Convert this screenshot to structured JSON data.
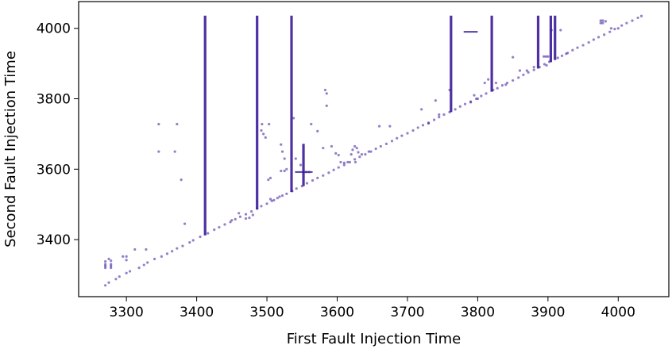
{
  "chart_data": {
    "type": "scatter",
    "xlabel": "First Fault Injection Time",
    "ylabel": "Second Fault Injection Time",
    "xlim": [
      3232,
      4072
    ],
    "ylim": [
      3238,
      4076
    ],
    "xticks": [
      3300,
      3400,
      3500,
      3600,
      3700,
      3800,
      3900,
      4000
    ],
    "yticks": [
      3400,
      3600,
      3800,
      4000
    ],
    "grid": false,
    "legend": "none",
    "color": "#3a1a99",
    "points": [
      [
        3270,
        3270
      ],
      [
        3275,
        3278
      ],
      [
        3285,
        3288
      ],
      [
        3290,
        3295
      ],
      [
        3300,
        3305
      ],
      [
        3305,
        3310
      ],
      [
        3318,
        3320
      ],
      [
        3325,
        3328
      ],
      [
        3330,
        3335
      ],
      [
        3340,
        3345
      ],
      [
        3350,
        3352
      ],
      [
        3358,
        3360
      ],
      [
        3365,
        3367
      ],
      [
        3372,
        3375
      ],
      [
        3380,
        3382
      ],
      [
        3390,
        3392
      ],
      [
        3395,
        3398
      ],
      [
        3405,
        3408
      ],
      [
        3416,
        3418
      ],
      [
        3425,
        3428
      ],
      [
        3432,
        3435
      ],
      [
        3440,
        3443
      ],
      [
        3448,
        3450
      ],
      [
        3455,
        3458
      ],
      [
        3462,
        3465
      ],
      [
        3470,
        3472
      ],
      [
        3478,
        3480
      ],
      [
        3486,
        3488
      ],
      [
        3492,
        3495
      ],
      [
        3500,
        3502
      ],
      [
        3507,
        3510
      ],
      [
        3515,
        3518
      ],
      [
        3522,
        3525
      ],
      [
        3528,
        3530
      ],
      [
        3536,
        3538
      ],
      [
        3542,
        3545
      ],
      [
        3550,
        3552
      ],
      [
        3557,
        3560
      ],
      [
        3565,
        3568
      ],
      [
        3572,
        3575
      ],
      [
        3580,
        3582
      ],
      [
        3588,
        3590
      ],
      [
        3595,
        3598
      ],
      [
        3602,
        3605
      ],
      [
        3610,
        3612
      ],
      [
        3618,
        3620
      ],
      [
        3625,
        3628
      ],
      [
        3632,
        3635
      ],
      [
        3640,
        3642
      ],
      [
        3648,
        3650
      ],
      [
        3655,
        3658
      ],
      [
        3662,
        3665
      ],
      [
        3670,
        3672
      ],
      [
        3678,
        3680
      ],
      [
        3685,
        3688
      ],
      [
        3692,
        3695
      ],
      [
        3700,
        3702
      ],
      [
        3708,
        3710
      ],
      [
        3715,
        3718
      ],
      [
        3722,
        3725
      ],
      [
        3730,
        3732
      ],
      [
        3738,
        3740
      ],
      [
        3745,
        3748
      ],
      [
        3752,
        3755
      ],
      [
        3760,
        3762
      ],
      [
        3768,
        3770
      ],
      [
        3775,
        3778
      ],
      [
        3782,
        3785
      ],
      [
        3790,
        3792
      ],
      [
        3798,
        3800
      ],
      [
        3805,
        3808
      ],
      [
        3812,
        3815
      ],
      [
        3822,
        3825
      ],
      [
        3828,
        3830
      ],
      [
        3835,
        3838
      ],
      [
        3842,
        3845
      ],
      [
        3850,
        3852
      ],
      [
        3858,
        3860
      ],
      [
        3865,
        3868
      ],
      [
        3872,
        3875
      ],
      [
        3880,
        3882
      ],
      [
        3888,
        3890
      ],
      [
        3895,
        3898
      ],
      [
        3902,
        3905
      ],
      [
        3914,
        3916
      ],
      [
        3920,
        3922
      ],
      [
        3928,
        3930
      ],
      [
        3935,
        3938
      ],
      [
        3942,
        3945
      ],
      [
        3950,
        3952
      ],
      [
        3958,
        3960
      ],
      [
        3965,
        3968
      ],
      [
        3972,
        3975
      ],
      [
        3980,
        3982
      ],
      [
        3988,
        3990
      ],
      [
        3995,
        3998
      ],
      [
        4005,
        4008
      ],
      [
        4012,
        4015
      ],
      [
        4020,
        4022
      ],
      [
        4028,
        4030
      ],
      [
        4033,
        4035
      ],
      [
        3270,
        3320
      ],
      [
        3270,
        3325
      ],
      [
        3270,
        3330
      ],
      [
        3270,
        3338
      ],
      [
        3278,
        3320
      ],
      [
        3278,
        3325
      ],
      [
        3278,
        3330
      ],
      [
        3278,
        3340
      ],
      [
        3275,
        3345
      ],
      [
        3295,
        3352
      ],
      [
        3300,
        3352
      ],
      [
        3300,
        3342
      ],
      [
        3312,
        3372
      ],
      [
        3328,
        3372
      ],
      [
        3346,
        3728
      ],
      [
        3372,
        3728
      ],
      [
        3346,
        3650
      ],
      [
        3369,
        3650
      ],
      [
        3378,
        3570
      ],
      [
        3383,
        3445
      ],
      [
        3450,
        3455
      ],
      [
        3460,
        3475
      ],
      [
        3470,
        3460
      ],
      [
        3475,
        3462
      ],
      [
        3480,
        3470
      ],
      [
        3493,
        3728
      ],
      [
        3503,
        3728
      ],
      [
        3492,
        3710
      ],
      [
        3495,
        3700
      ],
      [
        3498,
        3690
      ],
      [
        3502,
        3570
      ],
      [
        3505,
        3575
      ],
      [
        3505,
        3515
      ],
      [
        3510,
        3512
      ],
      [
        3518,
        3522
      ],
      [
        3520,
        3670
      ],
      [
        3522,
        3650
      ],
      [
        3525,
        3630
      ],
      [
        3528,
        3600
      ],
      [
        3520,
        3595
      ],
      [
        3525,
        3595
      ],
      [
        3538,
        3745
      ],
      [
        3541,
        3630
      ],
      [
        3548,
        3612
      ],
      [
        3552,
        3592
      ],
      [
        3556,
        3592
      ],
      [
        3560,
        3592
      ],
      [
        3563,
        3728
      ],
      [
        3572,
        3708
      ],
      [
        3580,
        3660
      ],
      [
        3583,
        3825
      ],
      [
        3585,
        3815
      ],
      [
        3585,
        3780
      ],
      [
        3592,
        3665
      ],
      [
        3598,
        3645
      ],
      [
        3602,
        3640
      ],
      [
        3605,
        3620
      ],
      [
        3610,
        3618
      ],
      [
        3615,
        3620
      ],
      [
        3622,
        3655
      ],
      [
        3625,
        3665
      ],
      [
        3628,
        3660
      ],
      [
        3630,
        3648
      ],
      [
        3620,
        3642
      ],
      [
        3626,
        3620
      ],
      [
        3635,
        3642
      ],
      [
        3645,
        3650
      ],
      [
        3660,
        3722
      ],
      [
        3675,
        3722
      ],
      [
        3720,
        3770
      ],
      [
        3730,
        3730
      ],
      [
        3740,
        3795
      ],
      [
        3745,
        3755
      ],
      [
        3760,
        3825
      ],
      [
        3790,
        3790
      ],
      [
        3795,
        3810
      ],
      [
        3800,
        3800
      ],
      [
        3810,
        3845
      ],
      [
        3815,
        3855
      ],
      [
        3826,
        3845
      ],
      [
        3840,
        3840
      ],
      [
        3850,
        3918
      ],
      [
        3860,
        3880
      ],
      [
        3870,
        3880
      ],
      [
        3880,
        3890
      ],
      [
        3894,
        3920
      ],
      [
        3897,
        3920
      ],
      [
        3900,
        3920
      ],
      [
        3898,
        3895
      ],
      [
        3905,
        3995
      ],
      [
        3918,
        3995
      ],
      [
        3926,
        3928
      ],
      [
        3975,
        4015
      ],
      [
        3975,
        4022
      ],
      [
        3978,
        4015
      ],
      [
        3978,
        4022
      ],
      [
        3982,
        4020
      ],
      [
        3990,
        4000
      ],
      [
        4000,
        4000
      ]
    ],
    "vertical_streaks": [
      {
        "x": 3412,
        "y_from": 3412,
        "y_to": 4036
      },
      {
        "x": 3486,
        "y_from": 3486,
        "y_to": 4036
      },
      {
        "x": 3535,
        "y_from": 3535,
        "y_to": 4036
      },
      {
        "x": 3552,
        "y_from": 3552,
        "y_to": 3672
      },
      {
        "x": 3762,
        "y_from": 3762,
        "y_to": 4036
      },
      {
        "x": 3820,
        "y_from": 3820,
        "y_to": 4036
      },
      {
        "x": 3886,
        "y_from": 3886,
        "y_to": 4036
      },
      {
        "x": 3904,
        "y_from": 3904,
        "y_to": 4036
      },
      {
        "x": 3910,
        "y_from": 3910,
        "y_to": 4036
      }
    ],
    "horizontal_streaks": [
      {
        "y": 3592,
        "x_from": 3540,
        "x_to": 3565
      },
      {
        "y": 3990,
        "x_from": 3780,
        "x_to": 3800
      }
    ]
  }
}
